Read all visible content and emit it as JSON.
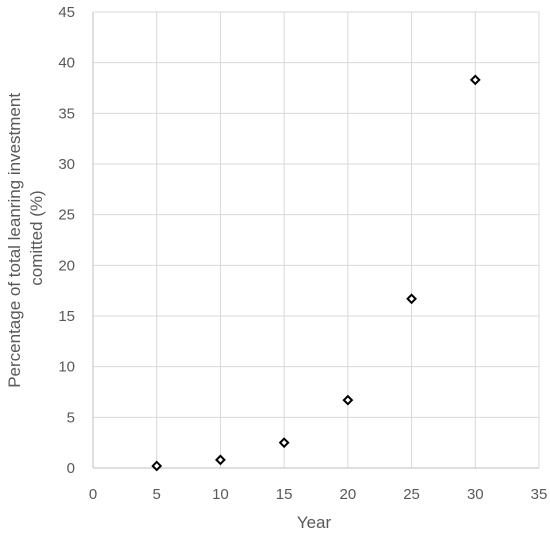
{
  "chart_data": {
    "type": "scatter",
    "title": "",
    "xlabel": "Year",
    "ylabel_lines": [
      "Percentage of total leanring investment",
      "comitted (%)"
    ],
    "xlim": [
      0,
      35
    ],
    "ylim": [
      0,
      45
    ],
    "xticks": [
      0,
      5,
      10,
      15,
      20,
      25,
      30,
      35
    ],
    "yticks": [
      0,
      5,
      10,
      15,
      20,
      25,
      30,
      35,
      40,
      45
    ],
    "grid": true,
    "marker": "diamond-open",
    "marker_color": "#000000",
    "x": [
      5,
      10,
      15,
      20,
      25,
      30
    ],
    "y": [
      0.2,
      0.8,
      2.5,
      6.7,
      16.7,
      38.3
    ]
  }
}
